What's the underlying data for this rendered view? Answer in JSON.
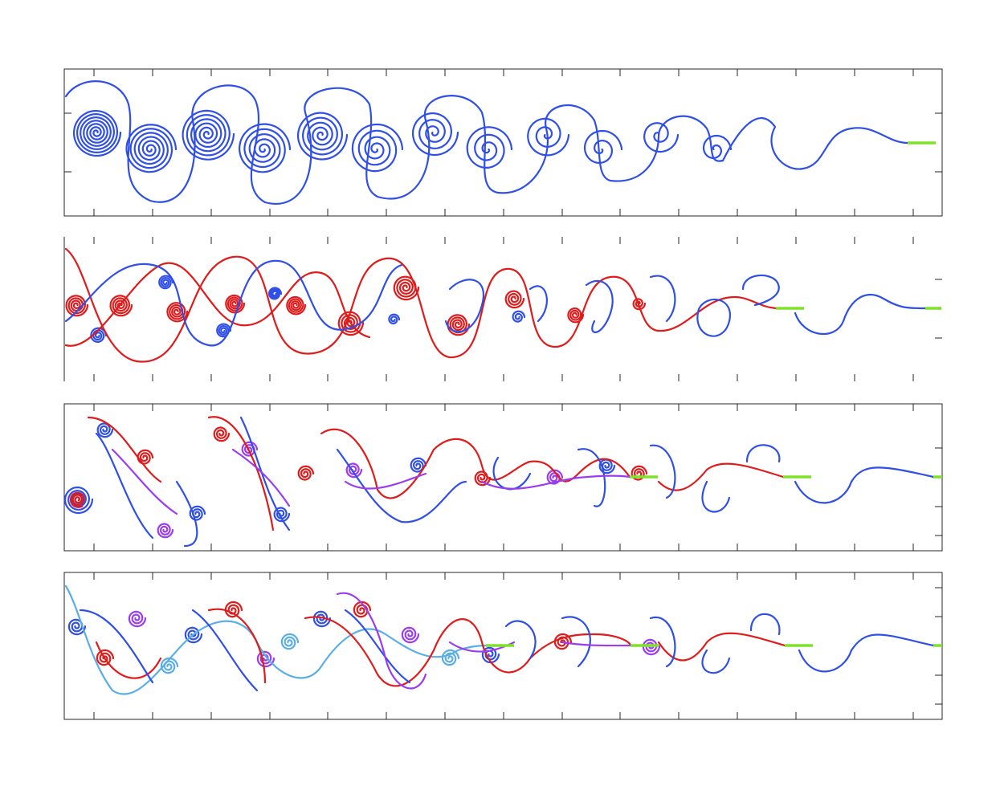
{
  "figure": {
    "description_free": true,
    "colors": {
      "axes": "#262626",
      "sheet_primary": "#2f4fe6",
      "sheet_secondary": "#e01b1b",
      "sheet_tertiary": "#9b3cf0",
      "sheet_quaternary": "#5aaee8",
      "plate": "#7fe22a",
      "background": "#ffffff"
    },
    "panels": [
      {
        "id": "p1",
        "sheets": [
          "sheet_primary"
        ],
        "plates": 1,
        "grid": false
      },
      {
        "id": "p2",
        "sheets": [
          "sheet_primary",
          "sheet_secondary"
        ],
        "plates": 2,
        "grid": false
      },
      {
        "id": "p3",
        "sheets": [
          "sheet_primary",
          "sheet_secondary",
          "sheet_tertiary"
        ],
        "plates": 3,
        "grid": false
      },
      {
        "id": "p4",
        "sheets": [
          "sheet_primary",
          "sheet_secondary",
          "sheet_tertiary",
          "sheet_quaternary"
        ],
        "plates": 4,
        "grid": false
      }
    ]
  }
}
